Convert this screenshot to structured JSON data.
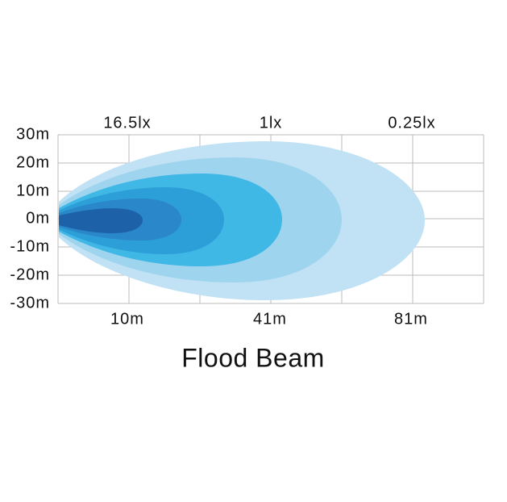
{
  "illuminance": {
    "labels": [
      "16.5lx",
      "1lx",
      "0.25lx"
    ]
  },
  "y_axis": {
    "labels": [
      "30m",
      "20m",
      "10m",
      "0m",
      "-10m",
      "-20m",
      "-30m"
    ]
  },
  "x_axis": {
    "labels": [
      "10m",
      "41m",
      "81m"
    ]
  },
  "title": "Flood Beam"
}
